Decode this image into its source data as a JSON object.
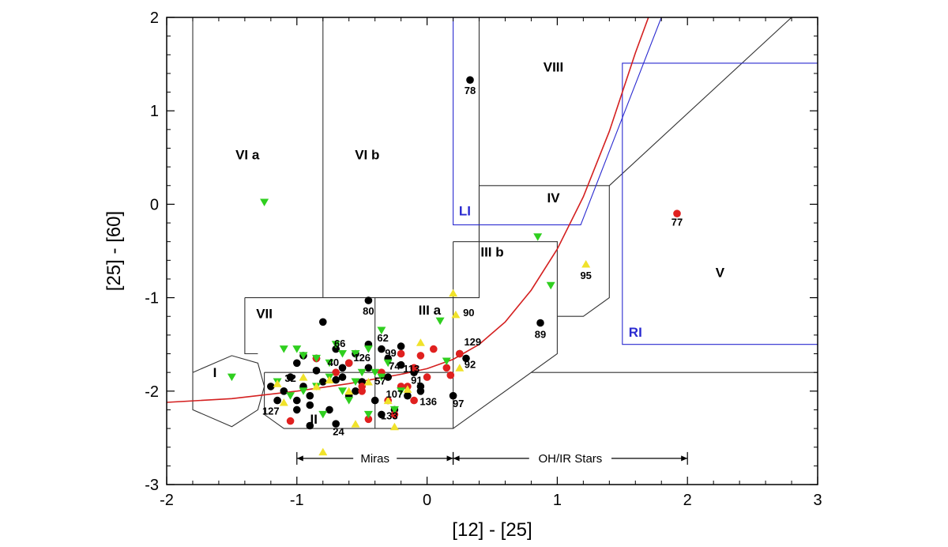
{
  "chart_data": {
    "type": "scatter",
    "title": "",
    "xlabel": "[12] - [25]",
    "ylabel": "[25] - [60]",
    "xlim": [
      -2,
      3
    ],
    "ylim": [
      -3,
      2
    ],
    "xticks": [
      "-2",
      "-1",
      "0",
      "1",
      "2",
      "3"
    ],
    "yticks": [
      "-3",
      "-2",
      "-1",
      "0",
      "1",
      "2"
    ],
    "grid": false,
    "legend": "none",
    "colors": {
      "black": "#000000",
      "red": "#e0201f",
      "green": "#2fcf1f",
      "yellow": "#f0e22a",
      "frame": "#000000",
      "region_line": "#333333",
      "blue": "#2a2ad0",
      "curve": "#d42020"
    },
    "region_labels": [
      {
        "text": "I",
        "x": -1.63,
        "y": -1.85,
        "color": "black"
      },
      {
        "text": "II",
        "x": -0.87,
        "y": -2.35,
        "color": "black"
      },
      {
        "text": "III a",
        "x": 0.02,
        "y": -1.18,
        "color": "black"
      },
      {
        "text": "III b",
        "x": 0.5,
        "y": -0.56,
        "color": "black"
      },
      {
        "text": "IV",
        "x": 0.97,
        "y": 0.02,
        "color": "black"
      },
      {
        "text": "V",
        "x": 2.25,
        "y": -0.78,
        "color": "black"
      },
      {
        "text": "VI a",
        "x": -1.38,
        "y": 0.48,
        "color": "black"
      },
      {
        "text": "VI b",
        "x": -0.46,
        "y": 0.48,
        "color": "black"
      },
      {
        "text": "VII",
        "x": -1.25,
        "y": -1.22,
        "color": "black"
      },
      {
        "text": "VIII",
        "x": 0.97,
        "y": 1.42,
        "color": "black"
      },
      {
        "text": "LI",
        "x": 0.29,
        "y": -0.12,
        "color": "blue"
      },
      {
        "text": "RI",
        "x": 1.6,
        "y": -1.42,
        "color": "blue"
      }
    ],
    "regions": [
      {
        "name": "I",
        "x": [
          -1.8,
          -1.5,
          -1.3,
          -1.25,
          -1.3,
          -1.5,
          -1.8,
          -1.8
        ],
        "y": [
          -1.8,
          -1.62,
          -1.7,
          -1.95,
          -2.2,
          -2.38,
          -2.2,
          -1.8
        ],
        "color": "black"
      },
      {
        "name": "VII-IIIa",
        "x": [
          -1.4,
          0.4,
          0.4,
          0.4
        ],
        "y": [
          -1.0,
          -1.0,
          2.0,
          2.0
        ],
        "color": "black"
      },
      {
        "name": "VII-left",
        "x": [
          -1.4,
          -1.4,
          -1.3
        ],
        "y": [
          -1.0,
          -1.6,
          -1.6
        ],
        "color": "black"
      },
      {
        "name": "II",
        "x": [
          -1.25,
          -1.25,
          -1.1,
          0.2,
          0.2
        ],
        "y": [
          -1.8,
          -2.25,
          -2.4,
          -2.4,
          -1.8
        ],
        "color": "black"
      },
      {
        "name": "VIa-left",
        "x": [
          -1.8,
          -1.8
        ],
        "y": [
          2.0,
          -1.8
        ],
        "color": "black"
      },
      {
        "name": "VIa-VIb",
        "x": [
          -0.8,
          -0.8
        ],
        "y": [
          2.0,
          -1.0
        ],
        "color": "black"
      },
      {
        "name": "VII-IIIa-divider",
        "x": [
          -0.4,
          -0.4
        ],
        "y": [
          -1.0,
          -2.4
        ],
        "color": "black"
      },
      {
        "name": "II-top",
        "x": [
          -1.25,
          0.2
        ],
        "y": [
          -1.8,
          -1.8
        ],
        "color": "black"
      },
      {
        "name": "IIIa-right",
        "x": [
          0.2,
          0.2
        ],
        "y": [
          -1.0,
          -1.8
        ],
        "color": "black"
      },
      {
        "name": "IIIb",
        "x": [
          0.2,
          1.0,
          1.0,
          0.2
        ],
        "y": [
          -0.4,
          -0.4,
          -1.6,
          -2.4
        ],
        "color": "black"
      },
      {
        "name": "IIIb-top",
        "x": [
          0.2,
          0.2
        ],
        "y": [
          -0.4,
          -1.0
        ],
        "color": "black"
      },
      {
        "name": "IV",
        "x": [
          0.4,
          1.4,
          1.4,
          1.2,
          1.0
        ],
        "y": [
          0.2,
          0.2,
          -1.0,
          -1.2,
          -1.2
        ],
        "color": "black"
      },
      {
        "name": "IV-left",
        "x": [
          0.4,
          0.4
        ],
        "y": [
          0.2,
          -0.4
        ],
        "color": "black"
      },
      {
        "name": "V-diag",
        "x": [
          1.4,
          2.8
        ],
        "y": [
          0.2,
          2.0
        ],
        "color": "black"
      },
      {
        "name": "V-bottom",
        "x": [
          0.8,
          3.0
        ],
        "y": [
          -1.8,
          -1.8
        ],
        "color": "black"
      },
      {
        "name": "LI",
        "x": [
          0.2,
          0.2,
          1.18,
          1.8
        ],
        "y": [
          2.0,
          -0.22,
          -0.22,
          2.0
        ],
        "color": "blue"
      },
      {
        "name": "RI",
        "x": [
          3.0,
          1.5,
          1.5,
          3.0
        ],
        "y": [
          1.51,
          1.51,
          -1.5,
          -1.5
        ],
        "color": "blue"
      }
    ],
    "curve": {
      "x": [
        -2.0,
        -1.5,
        -1.0,
        -0.6,
        -0.2,
        0.0,
        0.2,
        0.4,
        0.6,
        0.8,
        1.0,
        1.2,
        1.4,
        1.6,
        1.7
      ],
      "y": [
        -2.12,
        -2.08,
        -2.0,
        -1.92,
        -1.82,
        -1.76,
        -1.66,
        -1.5,
        -1.26,
        -0.92,
        -0.48,
        0.08,
        0.78,
        1.62,
        2.0
      ]
    },
    "series": [
      {
        "name": "",
        "color": "black",
        "marker": "circle",
        "x": [
          -0.45,
          -0.8,
          -0.95,
          -0.85,
          -0.55,
          -0.65,
          -0.7,
          -0.95,
          -1.05,
          -1.1,
          -1.0,
          -0.9,
          -0.75,
          -0.6,
          -0.5,
          -0.45,
          -0.35,
          -0.3,
          -0.2,
          -0.1,
          -0.05,
          -0.15,
          -0.25,
          -0.35,
          -0.4,
          -0.55,
          -0.65,
          -0.8,
          -0.9,
          -1.0,
          -1.15,
          -1.2,
          -1.0,
          -0.85,
          -0.7,
          -0.6,
          -0.45,
          -0.3,
          -0.2,
          -0.05,
          0.2,
          0.25,
          0.3,
          0.33,
          0.87,
          -0.9,
          -0.7
        ],
        "y": [
          -1.03,
          -1.26,
          -1.62,
          -1.78,
          -1.6,
          -1.75,
          -1.88,
          -1.95,
          -1.85,
          -2.0,
          -2.1,
          -2.15,
          -2.2,
          -2.05,
          -1.9,
          -1.75,
          -1.55,
          -1.65,
          -1.72,
          -1.8,
          -1.95,
          -2.05,
          -2.2,
          -2.25,
          -2.1,
          -2.0,
          -1.85,
          -1.9,
          -2.05,
          -2.2,
          -2.1,
          -1.95,
          -1.7,
          -1.65,
          -1.55,
          -1.7,
          -1.5,
          -1.85,
          -1.52,
          -2.0,
          -2.05,
          -1.6,
          -1.65,
          1.33,
          -1.27,
          -2.37,
          -2.35
        ]
      },
      {
        "name": "",
        "color": "red",
        "marker": "circle",
        "x": [
          -0.2,
          -0.1,
          0.0,
          -0.05,
          -0.15,
          -0.3,
          -0.45,
          -0.6,
          -0.5,
          -0.35,
          -0.25,
          0.05,
          0.15,
          0.18,
          -0.7,
          -0.85,
          -1.05,
          -0.2,
          0.25,
          1.92,
          -0.5,
          -0.1
        ],
        "y": [
          -1.6,
          -1.75,
          -1.85,
          -1.62,
          -1.95,
          -2.1,
          -2.3,
          -1.7,
          -2.0,
          -1.8,
          -2.25,
          -1.55,
          -1.75,
          -1.83,
          -1.8,
          -1.65,
          -2.32,
          -1.95,
          -1.6,
          -0.1,
          -1.95,
          -2.1
        ]
      },
      {
        "name": "",
        "color": "green",
        "marker": "triangle-down",
        "x": [
          -1.25,
          -1.5,
          -1.1,
          -1.0,
          -0.95,
          -0.85,
          -0.75,
          -0.65,
          -0.55,
          -0.45,
          -0.35,
          -0.3,
          -0.4,
          -0.55,
          -0.65,
          -0.75,
          -0.85,
          -0.95,
          -1.05,
          -1.15,
          -0.6,
          -0.5,
          -0.35,
          -0.25,
          0.1,
          0.15,
          0.85,
          0.95,
          -0.7,
          -0.45,
          -0.2,
          -0.8
        ],
        "y": [
          0.02,
          -1.85,
          -1.55,
          -1.55,
          -1.62,
          -1.65,
          -1.7,
          -1.6,
          -1.6,
          -1.55,
          -1.35,
          -1.7,
          -1.8,
          -1.9,
          -2.0,
          -1.85,
          -1.95,
          -2.0,
          -2.05,
          -1.9,
          -2.1,
          -1.8,
          -1.85,
          -2.2,
          -1.25,
          -1.68,
          -0.35,
          -0.87,
          -1.5,
          -2.25,
          -2.0,
          -2.25
        ]
      },
      {
        "name": "",
        "color": "yellow",
        "marker": "triangle-up",
        "x": [
          -1.15,
          -1.1,
          -0.8,
          0.2,
          0.22,
          1.22,
          -0.05,
          0.25,
          -0.55,
          -0.25,
          -0.95,
          -0.85,
          -0.75,
          -0.6,
          -0.45,
          -0.3,
          -0.15
        ],
        "y": [
          -1.92,
          -2.12,
          -2.65,
          -0.95,
          -1.18,
          -0.64,
          -1.48,
          -1.75,
          -2.35,
          -2.38,
          -1.85,
          -1.95,
          -1.88,
          -2.0,
          -1.9,
          -2.1,
          -1.98
        ]
      }
    ],
    "point_labels": [
      {
        "text": "78",
        "x": 0.33,
        "y": 1.18
      },
      {
        "text": "77",
        "x": 1.92,
        "y": -0.23
      },
      {
        "text": "95",
        "x": 1.22,
        "y": -0.8
      },
      {
        "text": "80",
        "x": -0.45,
        "y": -1.18
      },
      {
        "text": "90",
        "x": 0.32,
        "y": -1.2
      },
      {
        "text": "89",
        "x": 0.87,
        "y": -1.43
      },
      {
        "text": "66",
        "x": -0.67,
        "y": -1.53
      },
      {
        "text": "62",
        "x": -0.34,
        "y": -1.47
      },
      {
        "text": "99",
        "x": -0.28,
        "y": -1.63
      },
      {
        "text": "129",
        "x": 0.35,
        "y": -1.51
      },
      {
        "text": "126",
        "x": -0.5,
        "y": -1.68
      },
      {
        "text": "40",
        "x": -0.72,
        "y": -1.73
      },
      {
        "text": "74",
        "x": -0.25,
        "y": -1.77
      },
      {
        "text": "113",
        "x": -0.12,
        "y": -1.8
      },
      {
        "text": "92",
        "x": 0.33,
        "y": -1.75
      },
      {
        "text": "32",
        "x": -1.05,
        "y": -1.9
      },
      {
        "text": "57",
        "x": -0.36,
        "y": -1.93
      },
      {
        "text": "91",
        "x": -0.08,
        "y": -1.92
      },
      {
        "text": "107",
        "x": -0.25,
        "y": -2.07
      },
      {
        "text": "136",
        "x": 0.01,
        "y": -2.15
      },
      {
        "text": "97",
        "x": 0.24,
        "y": -2.17
      },
      {
        "text": "127",
        "x": -1.2,
        "y": -2.25
      },
      {
        "text": "133",
        "x": -0.29,
        "y": -2.3
      },
      {
        "text": "24",
        "x": -0.68,
        "y": -2.47
      }
    ],
    "brackets": [
      {
        "label": "Miras",
        "x1": -1.0,
        "x2": 0.2,
        "y": -2.72
      },
      {
        "label": "OH/IR Stars",
        "x1": 0.2,
        "x2": 2.0,
        "y": -2.72
      }
    ]
  }
}
